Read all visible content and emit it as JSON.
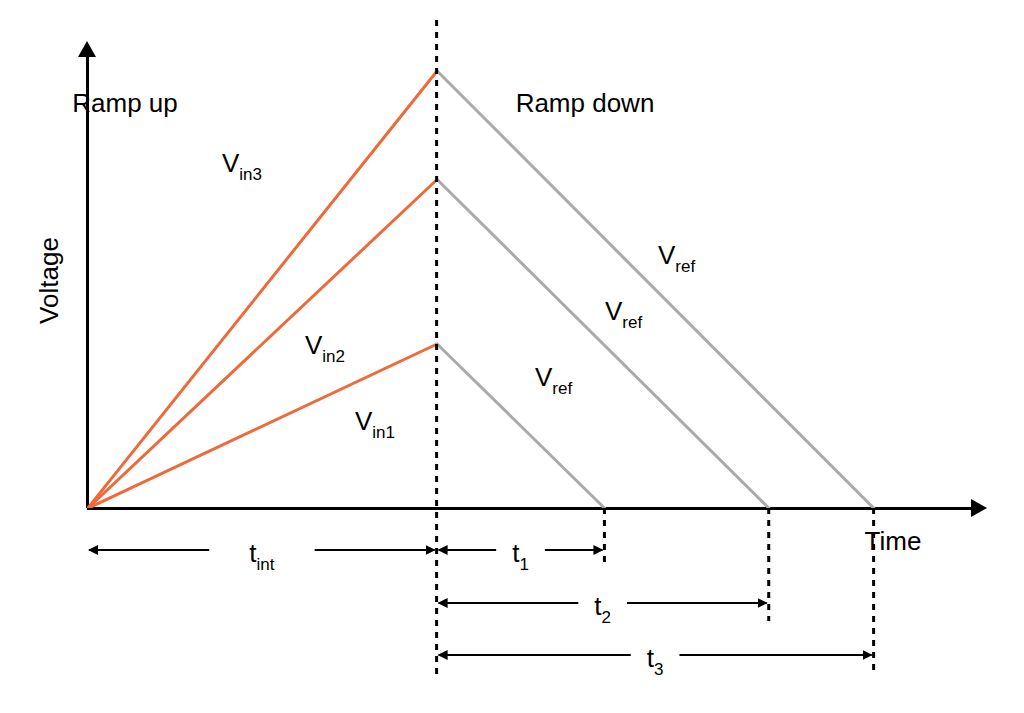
{
  "chart_data": {
    "type": "line",
    "x_label": "Time",
    "y_label": "Voltage",
    "xlim": [
      0,
      25.4
    ],
    "ylim": [
      0,
      13
    ],
    "xticks": [],
    "yticks": [],
    "tick_labels": false,
    "regions": [
      {
        "label": "Ramp up"
      },
      {
        "label": "Ramp down"
      }
    ],
    "series": [
      {
        "label": "V",
        "label_sub": "in1",
        "color": "#ee6a3a",
        "x": [
          0,
          10
        ],
        "values": [
          0,
          4.7
        ]
      },
      {
        "label": "V",
        "label_sub": "in2",
        "color": "#ee6a3a",
        "x": [
          0,
          10
        ],
        "values": [
          0,
          9.4
        ]
      },
      {
        "label": "V",
        "label_sub": "in3",
        "color": "#ee6a3a",
        "x": [
          0,
          10
        ],
        "values": [
          0,
          12.5
        ]
      },
      {
        "label": "V",
        "label_sub": "ref",
        "color": "#aaaaaa",
        "x": [
          10,
          14.8
        ],
        "values": [
          4.7,
          0
        ]
      },
      {
        "label": "V",
        "label_sub": "ref",
        "color": "#aaaaaa",
        "x": [
          10,
          19.5
        ],
        "values": [
          9.4,
          0
        ]
      },
      {
        "label": "V",
        "label_sub": "ref",
        "color": "#aaaaaa",
        "x": [
          10,
          22.5
        ],
        "values": [
          12.5,
          0
        ]
      }
    ],
    "intervals": [
      {
        "label": "t",
        "label_sub": "int",
        "from": 0,
        "to": 10
      },
      {
        "label": "t",
        "label_sub": "1",
        "from": 10,
        "to": 14.8
      },
      {
        "label": "t",
        "label_sub": "2",
        "from": 10,
        "to": 19.5
      },
      {
        "label": "t",
        "label_sub": "3",
        "from": 10,
        "to": 22.5
      }
    ]
  }
}
